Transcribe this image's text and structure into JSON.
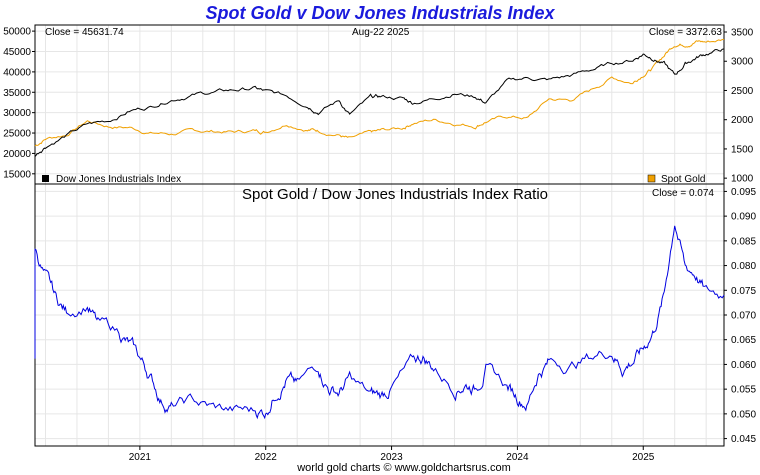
{
  "title": "Spot Gold v Dow Jones Industrials Index",
  "footer": "world gold charts © www.goldchartsrus.com",
  "colors": {
    "title": "#1a1adc",
    "dow": "#000000",
    "gold": "#f0a000",
    "ratio": "#0000e0",
    "grid": "#e6e6e6"
  },
  "chart_data": [
    {
      "type": "line",
      "panel": "top",
      "date_label": "Aug-22  2025",
      "left_annotation": "Close = 45631.74",
      "right_annotation": "Close = 3372.63",
      "x_tick_labels": [
        "2021",
        "2022",
        "2023",
        "2024",
        "2025"
      ],
      "x_range": [
        "2020-03",
        "2025-08"
      ],
      "y_left_ticks": [
        "15000",
        "20000",
        "25000",
        "30000",
        "35000",
        "40000",
        "45000",
        "50000"
      ],
      "y_left_range": [
        12500,
        51500
      ],
      "y_right_ticks": [
        "1000",
        "1500",
        "2000",
        "2500",
        "3000",
        "3500"
      ],
      "y_right_range": [
        900,
        3620
      ],
      "grid": true,
      "series": [
        {
          "name": "Dow Jones Industrials Index",
          "axis": "left",
          "points": [
            [
              "2020-03",
              19500
            ],
            [
              "2020-04",
              22000
            ],
            [
              "2020-06",
              24500
            ],
            [
              "2020-08",
              27000
            ],
            [
              "2020-10",
              28000
            ],
            [
              "2020-12",
              30500
            ],
            [
              "2021-02",
              31500
            ],
            [
              "2021-04",
              33500
            ],
            [
              "2021-06",
              34500
            ],
            [
              "2021-08",
              35000
            ],
            [
              "2021-10",
              35500
            ],
            [
              "2021-12",
              36000
            ],
            [
              "2022-01",
              35000
            ],
            [
              "2022-03",
              34000
            ],
            [
              "2022-05",
              32000
            ],
            [
              "2022-06",
              30500
            ],
            [
              "2022-08",
              33000
            ],
            [
              "2022-09",
              29500
            ],
            [
              "2022-11",
              33500
            ],
            [
              "2022-12",
              33800
            ],
            [
              "2023-02",
              33500
            ],
            [
              "2023-03",
              32500
            ],
            [
              "2023-05",
              33500
            ],
            [
              "2023-07",
              35000
            ],
            [
              "2023-09",
              34000
            ],
            [
              "2023-10",
              32500
            ],
            [
              "2023-12",
              37500
            ],
            [
              "2024-02",
              38500
            ],
            [
              "2024-04",
              38000
            ],
            [
              "2024-06",
              39000
            ],
            [
              "2024-08",
              40500
            ],
            [
              "2024-10",
              42000
            ],
            [
              "2024-12",
              43000
            ],
            [
              "2025-01",
              44500
            ],
            [
              "2025-02",
              43500
            ],
            [
              "2025-03",
              42000
            ],
            [
              "2025-04",
              39000
            ],
            [
              "2025-05",
              42000
            ],
            [
              "2025-06",
              43500
            ],
            [
              "2025-07",
              44500
            ],
            [
              "2025-08",
              45631.74
            ]
          ]
        },
        {
          "name": "Spot Gold",
          "axis": "right",
          "points": [
            [
              "2020-03",
              1550
            ],
            [
              "2020-04",
              1680
            ],
            [
              "2020-06",
              1750
            ],
            [
              "2020-08",
              1980
            ],
            [
              "2020-10",
              1890
            ],
            [
              "2020-12",
              1870
            ],
            [
              "2021-02",
              1780
            ],
            [
              "2021-04",
              1760
            ],
            [
              "2021-06",
              1800
            ],
            [
              "2021-08",
              1800
            ],
            [
              "2021-10",
              1790
            ],
            [
              "2021-12",
              1810
            ],
            [
              "2022-01",
              1800
            ],
            [
              "2022-03",
              1950
            ],
            [
              "2022-05",
              1850
            ],
            [
              "2022-06",
              1820
            ],
            [
              "2022-08",
              1750
            ],
            [
              "2022-09",
              1660
            ],
            [
              "2022-11",
              1760
            ],
            [
              "2022-12",
              1800
            ],
            [
              "2023-02",
              1850
            ],
            [
              "2023-03",
              1950
            ],
            [
              "2023-05",
              2000
            ],
            [
              "2023-07",
              1950
            ],
            [
              "2023-09",
              1900
            ],
            [
              "2023-10",
              1980
            ],
            [
              "2023-12",
              2050
            ],
            [
              "2024-02",
              2030
            ],
            [
              "2024-04",
              2350
            ],
            [
              "2024-06",
              2330
            ],
            [
              "2024-08",
              2500
            ],
            [
              "2024-10",
              2720
            ],
            [
              "2024-12",
              2640
            ],
            [
              "2025-01",
              2790
            ],
            [
              "2025-02",
              2900
            ],
            [
              "2025-03",
              3100
            ],
            [
              "2025-04",
              3300
            ],
            [
              "2025-05",
              3300
            ],
            [
              "2025-06",
              3350
            ],
            [
              "2025-07",
              3330
            ],
            [
              "2025-08",
              3372.63
            ]
          ]
        }
      ]
    },
    {
      "type": "line",
      "panel": "bottom",
      "title": "Spot Gold  /  Dow Jones Industrials Index Ratio",
      "right_annotation": "Close = 0.074",
      "y_right_ticks": [
        "0.045",
        "0.050",
        "0.055",
        "0.060",
        "0.065",
        "0.070",
        "0.075",
        "0.080",
        "0.085",
        "0.090",
        "0.095"
      ],
      "y_range": [
        0.0435,
        0.0965
      ],
      "grid": true,
      "series": [
        {
          "name": "Ratio",
          "axis": "right",
          "points": [
            [
              "2020-03",
              0.0605
            ],
            [
              "2020-03",
              0.0835
            ],
            [
              "2020-04",
              0.0775
            ],
            [
              "2020-05",
              0.073
            ],
            [
              "2020-06",
              0.0705
            ],
            [
              "2020-08",
              0.0725
            ],
            [
              "2020-09",
              0.068
            ],
            [
              "2020-11",
              0.0665
            ],
            [
              "2020-12",
              0.064
            ],
            [
              "2021-01",
              0.061
            ],
            [
              "2021-02",
              0.0575
            ],
            [
              "2021-03",
              0.053
            ],
            [
              "2021-04",
              0.0515
            ],
            [
              "2021-06",
              0.0525
            ],
            [
              "2021-08",
              0.051
            ],
            [
              "2021-10",
              0.0505
            ],
            [
              "2021-12",
              0.0505
            ],
            [
              "2022-01",
              0.0505
            ],
            [
              "2022-02",
              0.055
            ],
            [
              "2022-03",
              0.0575
            ],
            [
              "2022-04",
              0.0555
            ],
            [
              "2022-06",
              0.0595
            ],
            [
              "2022-07",
              0.0555
            ],
            [
              "2022-08",
              0.0545
            ],
            [
              "2022-09",
              0.057
            ],
            [
              "2022-11",
              0.0535
            ],
            [
              "2022-12",
              0.0535
            ],
            [
              "2023-01",
              0.0555
            ],
            [
              "2023-03",
              0.06
            ],
            [
              "2023-04",
              0.0615
            ],
            [
              "2023-05",
              0.0595
            ],
            [
              "2023-07",
              0.0555
            ],
            [
              "2023-08",
              0.0565
            ],
            [
              "2023-09",
              0.0555
            ],
            [
              "2023-10",
              0.0595
            ],
            [
              "2023-12",
              0.0555
            ],
            [
              "2024-01",
              0.0535
            ],
            [
              "2024-02",
              0.0525
            ],
            [
              "2024-03",
              0.0585
            ],
            [
              "2024-04",
              0.0605
            ],
            [
              "2024-06",
              0.06
            ],
            [
              "2024-08",
              0.0615
            ],
            [
              "2024-10",
              0.063
            ],
            [
              "2024-11",
              0.0595
            ],
            [
              "2024-12",
              0.061
            ],
            [
              "2025-01",
              0.063
            ],
            [
              "2025-02",
              0.067
            ],
            [
              "2025-03",
              0.074
            ],
            [
              "2025-04",
              0.0895
            ],
            [
              "2025-05",
              0.0795
            ],
            [
              "2025-06",
              0.0785
            ],
            [
              "2025-07",
              0.0745
            ],
            [
              "2025-08",
              0.074
            ]
          ]
        }
      ]
    }
  ],
  "legend": {
    "dow_label": "Dow Jones Industrials Index",
    "gold_label": "Spot Gold"
  }
}
